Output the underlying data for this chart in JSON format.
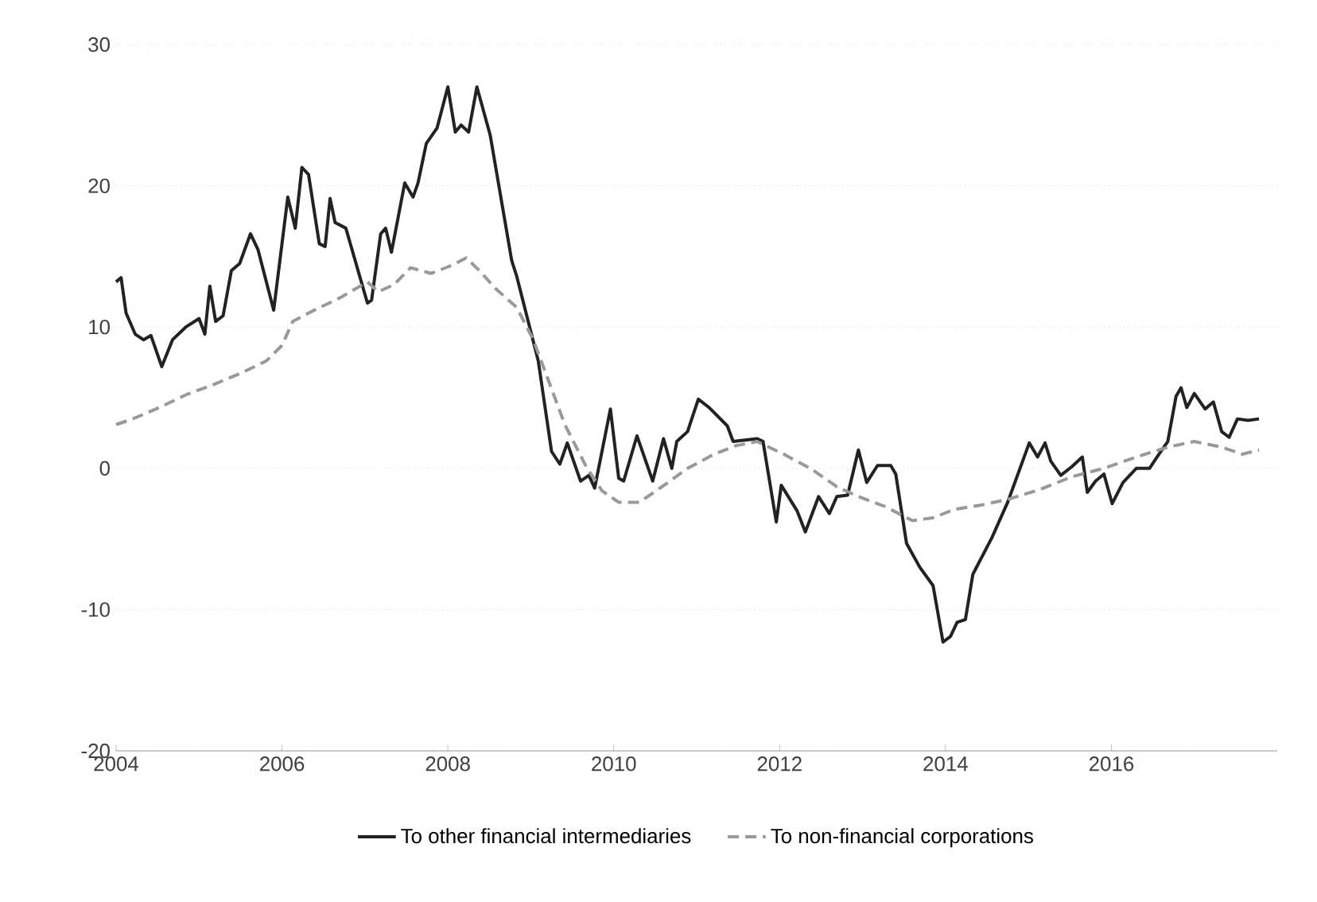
{
  "chart_data": {
    "type": "line",
    "xlim": [
      2004,
      2018
    ],
    "ylim": [
      -20,
      30
    ],
    "xticks": [
      2004,
      2006,
      2008,
      2010,
      2012,
      2014,
      2016
    ],
    "yticks": [
      -20,
      -10,
      0,
      10,
      20,
      30
    ],
    "grid": "y",
    "legend": "bottom",
    "series": [
      {
        "name": "To other financial intermediaries",
        "color": "#222222",
        "line_style": "solid",
        "x": [
          2004.0,
          2004.06,
          2004.12,
          2004.23,
          2004.33,
          2004.42,
          2004.55,
          2004.68,
          2004.84,
          2005.0,
          2005.07,
          2005.13,
          2005.2,
          2005.29,
          2005.39,
          2005.49,
          2005.62,
          2005.71,
          2005.9,
          2006.07,
          2006.16,
          2006.24,
          2006.32,
          2006.45,
          2006.52,
          2006.58,
          2006.64,
          2006.77,
          2007.03,
          2007.08,
          2007.19,
          2007.25,
          2007.32,
          2007.48,
          2007.58,
          2007.64,
          2007.74,
          2007.87,
          2008.0,
          2008.09,
          2008.16,
          2008.25,
          2008.35,
          2008.51,
          2008.77,
          2008.83,
          2009.09,
          2009.25,
          2009.35,
          2009.44,
          2009.6,
          2009.7,
          2009.77,
          2009.96,
          2010.06,
          2010.12,
          2010.28,
          2010.47,
          2010.6,
          2010.7,
          2010.76,
          2010.89,
          2011.02,
          2011.15,
          2011.37,
          2011.44,
          2011.73,
          2011.8,
          2011.96,
          2012.02,
          2012.21,
          2012.31,
          2012.47,
          2012.6,
          2012.69,
          2012.82,
          2012.95,
          2013.05,
          2013.18,
          2013.34,
          2013.4,
          2013.53,
          2013.69,
          2013.85,
          2013.97,
          2014.06,
          2014.14,
          2014.24,
          2014.33,
          2014.56,
          2014.75,
          2015.01,
          2015.11,
          2015.2,
          2015.27,
          2015.39,
          2015.52,
          2015.65,
          2015.71,
          2015.81,
          2015.91,
          2016.01,
          2016.14,
          2016.3,
          2016.46,
          2016.55,
          2016.68,
          2016.78,
          2016.84,
          2016.91,
          2017.0,
          2017.13,
          2017.23,
          2017.33,
          2017.42,
          2017.52,
          2017.65,
          2017.78
        ],
        "values": [
          13.2,
          13.5,
          11.0,
          9.5,
          9.1,
          9.4,
          7.2,
          9.1,
          10.0,
          10.6,
          9.5,
          12.9,
          10.4,
          10.8,
          14.0,
          14.5,
          16.6,
          15.5,
          11.2,
          19.2,
          17.0,
          21.3,
          20.8,
          15.9,
          15.7,
          19.1,
          17.4,
          17.0,
          11.7,
          11.9,
          16.6,
          17.0,
          15.3,
          20.2,
          19.2,
          20.2,
          23.0,
          24.1,
          27.0,
          23.8,
          24.3,
          23.8,
          27.0,
          23.6,
          14.7,
          13.6,
          7.6,
          1.2,
          0.3,
          1.8,
          -0.9,
          -0.5,
          -1.4,
          4.2,
          -0.7,
          -0.9,
          2.3,
          -0.9,
          2.1,
          0.0,
          1.9,
          2.6,
          4.9,
          4.3,
          3.0,
          1.9,
          2.1,
          1.9,
          -3.8,
          -1.2,
          -3.0,
          -4.5,
          -2.0,
          -3.2,
          -2.0,
          -1.9,
          1.3,
          -1.0,
          0.2,
          0.2,
          -0.4,
          -5.3,
          -7.0,
          -8.3,
          -12.3,
          -11.9,
          -10.9,
          -10.7,
          -7.5,
          -4.9,
          -2.4,
          1.8,
          0.8,
          1.8,
          0.5,
          -0.5,
          0.1,
          0.8,
          -1.7,
          -0.9,
          -0.4,
          -2.5,
          -1.0,
          0.0,
          0.0,
          0.8,
          1.9,
          5.1,
          5.7,
          4.3,
          5.3,
          4.2,
          4.7,
          2.6,
          2.2,
          3.5,
          3.4,
          3.5
        ]
      },
      {
        "name": "To non-financial corporations",
        "color": "#999999",
        "line_style": "dashed",
        "x": [
          2004.0,
          2004.2,
          2004.52,
          2004.84,
          2005.16,
          2005.49,
          2005.81,
          2006.0,
          2006.13,
          2006.39,
          2006.71,
          2007.03,
          2007.16,
          2007.35,
          2007.55,
          2007.8,
          2008.06,
          2008.22,
          2008.38,
          2008.58,
          2008.83,
          2009.03,
          2009.22,
          2009.41,
          2009.67,
          2009.86,
          2010.06,
          2010.31,
          2010.63,
          2010.89,
          2011.21,
          2011.47,
          2011.73,
          2012.05,
          2012.37,
          2012.69,
          2012.95,
          2013.27,
          2013.6,
          2013.85,
          2014.11,
          2014.43,
          2014.75,
          2015.14,
          2015.52,
          2015.91,
          2016.3,
          2016.68,
          2017.0,
          2017.33,
          2017.58,
          2017.78
        ],
        "values": [
          3.1,
          3.5,
          4.3,
          5.2,
          5.9,
          6.7,
          7.6,
          8.7,
          10.4,
          11.2,
          12.1,
          13.2,
          12.5,
          13.0,
          14.2,
          13.8,
          14.4,
          14.9,
          14.0,
          12.7,
          11.4,
          9.1,
          6.1,
          3.1,
          0.1,
          -1.6,
          -2.4,
          -2.4,
          -1.1,
          0.0,
          1.0,
          1.6,
          1.9,
          1.0,
          0.0,
          -1.3,
          -2.0,
          -2.7,
          -3.7,
          -3.5,
          -2.9,
          -2.6,
          -2.2,
          -1.5,
          -0.6,
          0.0,
          0.8,
          1.5,
          1.9,
          1.5,
          1.0,
          1.3
        ]
      }
    ]
  }
}
